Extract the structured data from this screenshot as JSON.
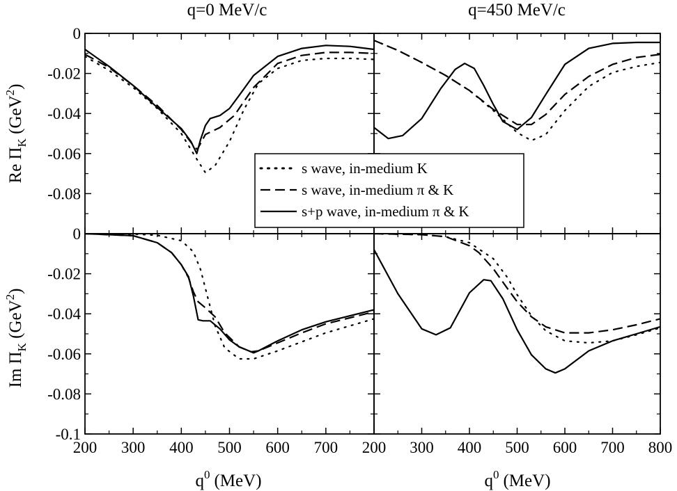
{
  "figure": {
    "column_titles": [
      "q=0 MeV/c",
      "q=450 MeV/c"
    ],
    "x_axis_title": "q",
    "x_axis_title_sup": "0",
    "x_axis_title_unit": "(MeV)",
    "re_axis_title": {
      "prefix": "Re Π",
      "sub": "K",
      "unit_open": " (GeV",
      "sup": "2",
      "unit_close": ")"
    },
    "im_axis_title": {
      "prefix": "Im Π",
      "sub": "K",
      "unit_open": " (GeV",
      "sup": "2",
      "unit_close": ")"
    },
    "legend": [
      {
        "label": "s wave, in-medium K",
        "style": "dotted"
      },
      {
        "label": "s wave, in-medium π & K",
        "style": "dashed"
      },
      {
        "label": "s+p wave, in-medium π & K",
        "style": "solid"
      }
    ]
  },
  "chart_data": [
    {
      "type": "line",
      "panel": "re-q0",
      "title": "q=0 MeV/c",
      "xlabel": "q0 (MeV)",
      "ylabel": "Re ΠK (GeV^2)",
      "xlim": [
        200,
        800
      ],
      "ylim": [
        -0.1,
        0
      ],
      "yticks": [
        0,
        -0.02,
        -0.04,
        -0.06,
        -0.08
      ],
      "ytick_labels": [
        "0",
        "-0.02",
        "-0.04",
        "-0.06",
        "-0.08"
      ],
      "xticks": [
        200,
        300,
        400,
        500,
        600,
        700,
        800
      ],
      "xtick_labels": [],
      "series": [
        {
          "name": "s wave, in-medium K",
          "style": "dotted",
          "x": [
            200,
            250,
            300,
            350,
            400,
            430,
            450,
            470,
            500,
            530,
            560,
            600,
            650,
            700,
            750,
            800
          ],
          "y": [
            -0.0115,
            -0.0185,
            -0.027,
            -0.0375,
            -0.05,
            -0.062,
            -0.0695,
            -0.066,
            -0.054,
            -0.038,
            -0.025,
            -0.0175,
            -0.0135,
            -0.0125,
            -0.0125,
            -0.013
          ]
        },
        {
          "name": "s wave, in-medium π & K",
          "style": "dashed",
          "x": [
            200,
            250,
            300,
            350,
            400,
            425,
            433,
            450,
            480,
            510,
            550,
            600,
            650,
            700,
            750,
            800
          ],
          "y": [
            -0.0105,
            -0.017,
            -0.026,
            -0.036,
            -0.048,
            -0.056,
            -0.058,
            -0.0505,
            -0.047,
            -0.041,
            -0.027,
            -0.015,
            -0.011,
            -0.0095,
            -0.0095,
            -0.01
          ]
        },
        {
          "name": "s+p wave, in-medium π & K",
          "style": "solid",
          "x": [
            200,
            250,
            300,
            350,
            400,
            420,
            432,
            440,
            450,
            460,
            480,
            500,
            520,
            550,
            600,
            650,
            700,
            750,
            800
          ],
          "y": [
            -0.008,
            -0.0165,
            -0.026,
            -0.037,
            -0.0475,
            -0.054,
            -0.06,
            -0.053,
            -0.046,
            -0.0425,
            -0.041,
            -0.0375,
            -0.031,
            -0.021,
            -0.0115,
            -0.0075,
            -0.006,
            -0.0065,
            -0.008
          ]
        }
      ]
    },
    {
      "type": "line",
      "panel": "re-q450",
      "title": "q=450 MeV/c",
      "xlabel": "q0 (MeV)",
      "ylabel": "",
      "xlim": [
        200,
        800
      ],
      "ylim": [
        -0.1,
        0
      ],
      "yticks": [
        0,
        -0.02,
        -0.04,
        -0.06,
        -0.08
      ],
      "ytick_labels": [],
      "xticks": [
        200,
        300,
        400,
        500,
        600,
        700,
        800
      ],
      "xtick_labels": [],
      "series": [
        {
          "name": "s wave, in-medium K",
          "style": "dotted",
          "x": [
            200,
            250,
            300,
            350,
            400,
            450,
            500,
            530,
            560,
            600,
            650,
            700,
            750,
            800
          ],
          "y": [
            -0.0035,
            -0.0085,
            -0.0145,
            -0.021,
            -0.0285,
            -0.0385,
            -0.0495,
            -0.0535,
            -0.0505,
            -0.0385,
            -0.0265,
            -0.0195,
            -0.0165,
            -0.0145
          ]
        },
        {
          "name": "s wave, in-medium π & K",
          "style": "dashed",
          "x": [
            200,
            250,
            300,
            350,
            400,
            450,
            500,
            530,
            560,
            600,
            650,
            700,
            750,
            800
          ],
          "y": [
            -0.0035,
            -0.0085,
            -0.0145,
            -0.021,
            -0.0285,
            -0.038,
            -0.0455,
            -0.0455,
            -0.0405,
            -0.0305,
            -0.0215,
            -0.0155,
            -0.012,
            -0.0105
          ]
        },
        {
          "name": "s+p wave, in-medium π & K",
          "style": "solid",
          "x": [
            200,
            230,
            260,
            300,
            340,
            370,
            390,
            410,
            430,
            450,
            470,
            500,
            530,
            560,
            600,
            650,
            700,
            750,
            800
          ],
          "y": [
            -0.047,
            -0.0525,
            -0.051,
            -0.0425,
            -0.0275,
            -0.018,
            -0.015,
            -0.0175,
            -0.026,
            -0.0355,
            -0.044,
            -0.048,
            -0.042,
            -0.0305,
            -0.0155,
            -0.0075,
            -0.005,
            -0.0045,
            -0.0045
          ]
        }
      ]
    },
    {
      "type": "line",
      "panel": "im-q0",
      "title": "",
      "xlabel": "q0 (MeV)",
      "ylabel": "Im ΠK (GeV^2)",
      "xlim": [
        200,
        800
      ],
      "ylim": [
        -0.1,
        0
      ],
      "yticks": [
        0,
        -0.02,
        -0.04,
        -0.06,
        -0.08,
        -0.1
      ],
      "ytick_labels": [
        "0",
        "-0.02",
        "-0.04",
        "-0.06",
        "-0.08",
        "-0.1"
      ],
      "xticks": [
        200,
        300,
        400,
        500,
        600,
        700,
        800
      ],
      "xtick_labels": [
        "200",
        "300",
        "400",
        "500",
        "600",
        "700"
      ],
      "series": [
        {
          "name": "s wave, in-medium K",
          "style": "dotted",
          "x": [
            200,
            300,
            350,
            400,
            425,
            440,
            455,
            470,
            490,
            520,
            550,
            600,
            650,
            700,
            750,
            800
          ],
          "y": [
            0,
            -0.0002,
            -0.0008,
            -0.0035,
            -0.009,
            -0.018,
            -0.032,
            -0.046,
            -0.057,
            -0.0625,
            -0.0625,
            -0.0585,
            -0.054,
            -0.0495,
            -0.046,
            -0.0425
          ]
        },
        {
          "name": "s wave, in-medium π & K",
          "style": "dashed",
          "x": [
            200,
            300,
            350,
            380,
            400,
            415,
            425,
            435,
            450,
            470,
            490,
            520,
            550,
            600,
            650,
            700,
            750,
            800
          ],
          "y": [
            0,
            -0.001,
            -0.0045,
            -0.0095,
            -0.0155,
            -0.022,
            -0.029,
            -0.034,
            -0.037,
            -0.0415,
            -0.0495,
            -0.0565,
            -0.0595,
            -0.0545,
            -0.0495,
            -0.045,
            -0.042,
            -0.039
          ]
        },
        {
          "name": "s+p wave, in-medium π & K",
          "style": "solid",
          "x": [
            200,
            300,
            350,
            380,
            400,
            415,
            425,
            435,
            445,
            460,
            480,
            500,
            520,
            545,
            560,
            600,
            650,
            700,
            750,
            800
          ],
          "y": [
            0,
            -0.001,
            -0.0045,
            -0.0095,
            -0.0155,
            -0.0215,
            -0.031,
            -0.043,
            -0.0435,
            -0.0435,
            -0.0475,
            -0.053,
            -0.0565,
            -0.059,
            -0.0585,
            -0.0535,
            -0.048,
            -0.044,
            -0.041,
            -0.038
          ]
        }
      ]
    },
    {
      "type": "line",
      "panel": "im-q450",
      "title": "",
      "xlabel": "q0 (MeV)",
      "ylabel": "",
      "xlim": [
        200,
        800
      ],
      "ylim": [
        -0.1,
        0
      ],
      "yticks": [
        0,
        -0.02,
        -0.04,
        -0.06,
        -0.08,
        -0.1
      ],
      "ytick_labels": [],
      "xticks": [
        200,
        300,
        400,
        500,
        600,
        700,
        800
      ],
      "xtick_labels": [
        "200",
        "300",
        "400",
        "500",
        "600",
        "700",
        "800"
      ],
      "series": [
        {
          "name": "s wave, in-medium K",
          "style": "dotted",
          "x": [
            200,
            300,
            350,
            400,
            450,
            480,
            500,
            530,
            560,
            600,
            650,
            700,
            750,
            800
          ],
          "y": [
            0,
            -0.0005,
            -0.0015,
            -0.0045,
            -0.0125,
            -0.022,
            -0.0305,
            -0.041,
            -0.0485,
            -0.0535,
            -0.0545,
            -0.0535,
            -0.0505,
            -0.047
          ]
        },
        {
          "name": "s wave, in-medium π & K",
          "style": "dashed",
          "x": [
            200,
            300,
            350,
            400,
            420,
            450,
            480,
            500,
            530,
            560,
            600,
            650,
            700,
            750,
            800
          ],
          "y": [
            0,
            -0.0005,
            -0.0015,
            -0.006,
            -0.0095,
            -0.0175,
            -0.0275,
            -0.034,
            -0.0415,
            -0.0465,
            -0.0495,
            -0.0495,
            -0.048,
            -0.0455,
            -0.0425
          ]
        },
        {
          "name": "s+p wave, in-medium π & K",
          "style": "solid",
          "x": [
            200,
            250,
            300,
            330,
            360,
            400,
            430,
            445,
            470,
            500,
            530,
            560,
            580,
            600,
            650,
            700,
            750,
            800
          ],
          "y": [
            -0.008,
            -0.03,
            -0.0475,
            -0.0505,
            -0.047,
            -0.0295,
            -0.023,
            -0.0235,
            -0.0325,
            -0.048,
            -0.0605,
            -0.0675,
            -0.0695,
            -0.0675,
            -0.0585,
            -0.0535,
            -0.05,
            -0.0465
          ]
        }
      ]
    }
  ]
}
